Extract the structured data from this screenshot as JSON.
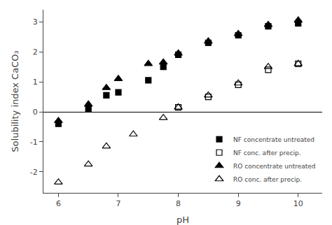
{
  "chart_data": {
    "type": "scatter",
    "xlabel": "pH",
    "ylabel": "Solubility index CaCO₃",
    "xlim": [
      5.75,
      10.4
    ],
    "ylim": [
      -2.7,
      3.4
    ],
    "xticks": [
      6,
      7,
      8,
      9,
      10
    ],
    "yticks": [
      -2,
      -1,
      0,
      1,
      2,
      3
    ],
    "grid": false,
    "legend": "lower right",
    "series": [
      {
        "name": "NF concentrate untreated",
        "color": "#000000",
        "marker": "square",
        "x": [
          6.0,
          6.5,
          6.8,
          7.0,
          7.5,
          7.75,
          8.0,
          8.5,
          9.0,
          9.5,
          10.0
        ],
        "values": [
          -0.4,
          0.1,
          0.55,
          0.65,
          1.05,
          1.5,
          1.9,
          2.3,
          2.55,
          2.85,
          2.95
        ]
      },
      {
        "name": "NF conc. after precip.",
        "color": "#000000",
        "marker": "square-open",
        "x": [
          8.0,
          8.5,
          9.0,
          9.5,
          10.0
        ],
        "values": [
          0.15,
          0.5,
          0.9,
          1.4,
          1.6
        ]
      },
      {
        "name": "RO concentrate untreated",
        "color": "#000000",
        "marker": "triangle-up",
        "x": [
          6.0,
          6.5,
          6.8,
          7.0,
          7.5,
          7.75,
          8.0,
          8.5,
          9.0,
          9.5,
          10.0
        ],
        "values": [
          -0.3,
          0.25,
          0.8,
          1.1,
          1.6,
          1.65,
          1.95,
          2.35,
          2.6,
          2.9,
          3.05
        ]
      },
      {
        "name": "RO conc. after precip.",
        "color": "#000000",
        "marker": "triangle-up-open",
        "x": [
          6.0,
          6.5,
          6.8,
          7.25,
          7.75,
          8.0,
          8.5,
          9.0,
          9.5,
          10.0
        ],
        "values": [
          -2.35,
          -1.75,
          -1.15,
          -0.75,
          -0.2,
          0.15,
          0.55,
          0.95,
          1.5,
          1.6
        ]
      }
    ]
  }
}
